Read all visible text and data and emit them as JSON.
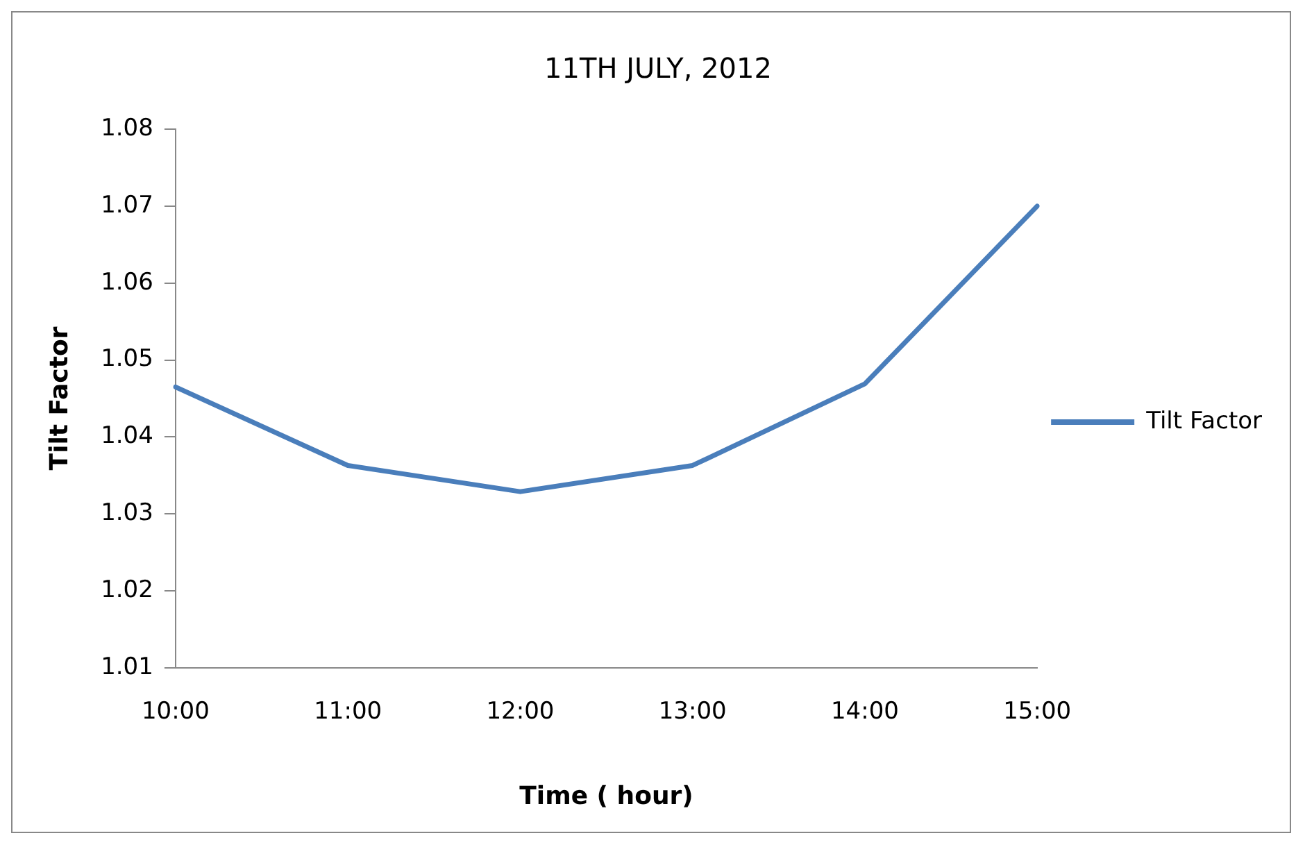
{
  "chart_data": {
    "type": "line",
    "title": "11TH JULY, 2012",
    "xlabel": "Time ( hour)",
    "ylabel": "Tilt Factor",
    "categories": [
      "10:00",
      "11:00",
      "12:00",
      "13:00",
      "14:00",
      "15:00"
    ],
    "series": [
      {
        "name": "Tilt Factor",
        "color": "#4a7ebb",
        "values": [
          1.0465,
          1.0363,
          1.0329,
          1.0363,
          1.0469,
          1.07
        ]
      }
    ],
    "ylim": [
      1.01,
      1.08
    ],
    "yticks": [
      1.01,
      1.02,
      1.03,
      1.04,
      1.05,
      1.06,
      1.07,
      1.08
    ],
    "grid": false,
    "legend": "right",
    "marker": "none",
    "line_style": "solid"
  }
}
